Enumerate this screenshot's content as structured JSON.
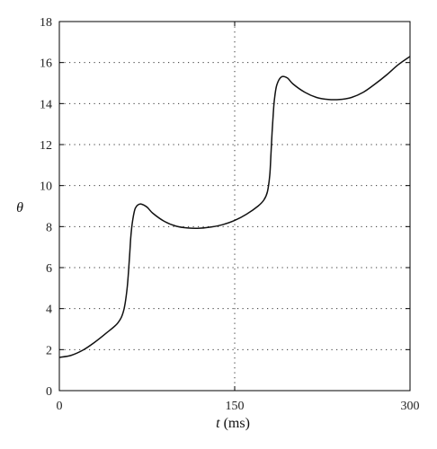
{
  "chart_data": {
    "type": "line",
    "ylabel": "θ",
    "xlabel": {
      "var": "t",
      "unit": " (ms)"
    },
    "xlim": [
      0,
      300
    ],
    "ylim": [
      0,
      18
    ],
    "x_ticks": [
      0,
      150,
      300
    ],
    "y_ticks": [
      0,
      2,
      4,
      6,
      8,
      10,
      12,
      14,
      16,
      18
    ],
    "grid": "dotted",
    "colors": {
      "line": "#111111",
      "grid": "#333333",
      "frame": "#000000"
    },
    "series": [
      {
        "x": [
          0,
          10,
          20,
          30,
          40,
          50,
          55,
          58,
          60,
          61,
          62,
          63,
          64,
          65,
          67,
          70,
          75,
          80,
          90,
          100,
          110,
          120,
          130,
          140,
          150,
          160,
          170,
          175,
          178,
          180,
          181,
          182,
          183,
          184,
          186,
          190,
          195,
          200,
          210,
          220,
          230,
          240,
          250,
          260,
          270,
          280,
          290,
          300
        ],
        "y": [
          1.62,
          1.72,
          1.97,
          2.35,
          2.8,
          3.3,
          3.9,
          5.0,
          6.5,
          7.4,
          8.0,
          8.4,
          8.7,
          8.9,
          9.05,
          9.1,
          8.95,
          8.65,
          8.25,
          8.02,
          7.93,
          7.92,
          7.98,
          8.1,
          8.3,
          8.6,
          9.0,
          9.3,
          9.7,
          10.5,
          11.5,
          12.6,
          13.5,
          14.2,
          14.9,
          15.3,
          15.25,
          14.95,
          14.55,
          14.3,
          14.2,
          14.2,
          14.3,
          14.55,
          14.95,
          15.4,
          15.9,
          16.3
        ]
      }
    ]
  }
}
